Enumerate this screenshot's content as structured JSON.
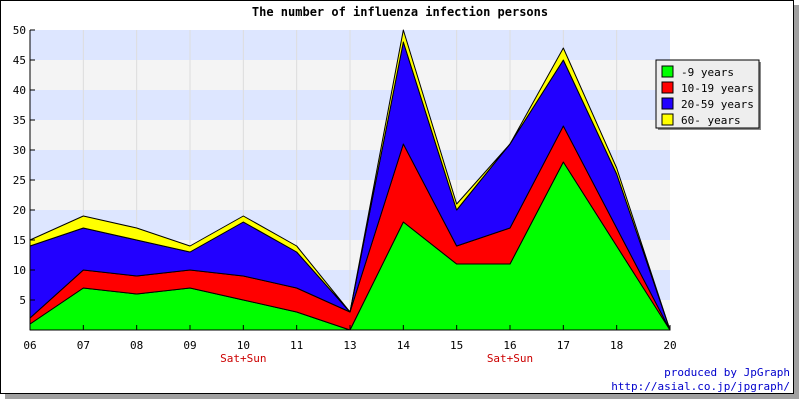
{
  "chart_data": {
    "type": "area",
    "stacked": true,
    "title": "The number of influenza infection persons",
    "xlabel": "",
    "ylabel": "",
    "categories": [
      "06",
      "07",
      "08",
      "09",
      "10",
      "11",
      "13",
      "14",
      "15",
      "16",
      "17",
      "18",
      "20"
    ],
    "annotations": [
      {
        "category": "10",
        "text": "Sat+Sun"
      },
      {
        "category": "16",
        "text": "Sat+Sun"
      }
    ],
    "ylim": [
      0,
      50
    ],
    "yticks": [
      5,
      10,
      15,
      20,
      25,
      30,
      35,
      40,
      45,
      50
    ],
    "legend_position": "right",
    "series": [
      {
        "name": "-9 years",
        "color": "#00ff00",
        "values": [
          1,
          7,
          6,
          7,
          5,
          3,
          0,
          18,
          11,
          11,
          28,
          14,
          0
        ]
      },
      {
        "name": "10-19 years",
        "color": "#ff0000",
        "values": [
          1,
          3,
          3,
          3,
          4,
          4,
          3,
          13,
          3,
          6,
          6,
          3,
          0
        ]
      },
      {
        "name": "20-59 years",
        "color": "#2200ff",
        "values": [
          12,
          7,
          6,
          3,
          9,
          6,
          0,
          17,
          6,
          14,
          11,
          9,
          0
        ]
      },
      {
        "name": "60- years",
        "color": "#ffff00",
        "values": [
          1,
          2,
          2,
          1,
          1,
          1,
          0,
          2,
          1,
          0,
          2,
          1,
          0
        ]
      }
    ]
  },
  "credits": {
    "line1": "produced by JpGraph",
    "line2": "http://asial.co.jp/jpgraph/"
  }
}
